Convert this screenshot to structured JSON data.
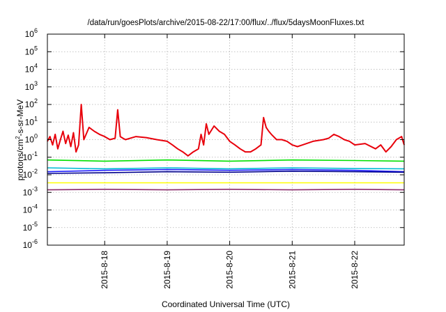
{
  "chart_data": {
    "type": "line",
    "title": "/data/run/goesPlots/archive/2015-08-22/17:00/flux/../flux/5daysMoonFluxes.txt",
    "xlabel": "Coordinated Universal Time (UTC)",
    "ylabel": {
      "base": "protons/cm",
      "sup": "2",
      "rest": "-s-sr-MeV"
    },
    "y_scale": "log",
    "ylim": [
      1e-06,
      1000000.0
    ],
    "xlim": [
      "2015-08-17T02:00",
      "2015-08-22T19:00"
    ],
    "grid": true,
    "legend": "none",
    "y_ticks": [
      {
        "value": 1e-06,
        "base": "10",
        "exp": "-6"
      },
      {
        "value": 1e-05,
        "base": "10",
        "exp": "-5"
      },
      {
        "value": 0.0001,
        "base": "10",
        "exp": "-4"
      },
      {
        "value": 0.001,
        "base": "10",
        "exp": "-3"
      },
      {
        "value": 0.01,
        "base": "10",
        "exp": "-2"
      },
      {
        "value": 0.1,
        "base": "10",
        "exp": "-1"
      },
      {
        "value": 1,
        "base": "10",
        "exp": "0"
      },
      {
        "value": 10.0,
        "base": "10",
        "exp": "1"
      },
      {
        "value": 100.0,
        "base": "10",
        "exp": "2"
      },
      {
        "value": 1000.0,
        "base": "10",
        "exp": "3"
      },
      {
        "value": 10000.0,
        "base": "10",
        "exp": "4"
      },
      {
        "value": 100000.0,
        "base": "10",
        "exp": "5"
      },
      {
        "value": 1000000.0,
        "base": "10",
        "exp": "6"
      }
    ],
    "x_ticks": [
      {
        "value": "2015-08-18T00:00",
        "label": "2015-8-18"
      },
      {
        "value": "2015-08-19T00:00",
        "label": "2015-8-19"
      },
      {
        "value": "2015-08-20T00:00",
        "label": "2015-8-20"
      },
      {
        "value": "2015-08-21T00:00",
        "label": "2015-8-21"
      },
      {
        "value": "2015-08-22T00:00",
        "label": "2015-8-22"
      }
    ],
    "series": [
      {
        "color": "#e8000b",
        "x": [
          "2015-08-17T02:00",
          "2015-08-17T03:00",
          "2015-08-17T04:00",
          "2015-08-17T05:00",
          "2015-08-17T06:00",
          "2015-08-17T07:00",
          "2015-08-17T08:00",
          "2015-08-17T09:00",
          "2015-08-17T10:00",
          "2015-08-17T11:00",
          "2015-08-17T12:00",
          "2015-08-17T13:00",
          "2015-08-17T14:00",
          "2015-08-17T15:00",
          "2015-08-17T16:00",
          "2015-08-17T18:00",
          "2015-08-17T20:00",
          "2015-08-17T22:00",
          "2015-08-18T00:00",
          "2015-08-18T02:00",
          "2015-08-18T04:00",
          "2015-08-18T05:00",
          "2015-08-18T06:00",
          "2015-08-18T07:00",
          "2015-08-18T08:00",
          "2015-08-18T12:00",
          "2015-08-18T16:00",
          "2015-08-18T20:00",
          "2015-08-19T00:00",
          "2015-08-19T02:00",
          "2015-08-19T04:00",
          "2015-08-19T06:00",
          "2015-08-19T08:00",
          "2015-08-19T10:00",
          "2015-08-19T12:00",
          "2015-08-19T13:00",
          "2015-08-19T14:00",
          "2015-08-19T15:00",
          "2015-08-19T16:00",
          "2015-08-19T18:00",
          "2015-08-19T20:00",
          "2015-08-19T22:00",
          "2015-08-20T00:00",
          "2015-08-20T02:00",
          "2015-08-20T04:00",
          "2015-08-20T06:00",
          "2015-08-20T08:00",
          "2015-08-20T10:00",
          "2015-08-20T12:00",
          "2015-08-20T13:00",
          "2015-08-20T14:00",
          "2015-08-20T15:00",
          "2015-08-20T16:00",
          "2015-08-20T18:00",
          "2015-08-20T20:00",
          "2015-08-20T22:00",
          "2015-08-21T00:00",
          "2015-08-21T02:00",
          "2015-08-21T04:00",
          "2015-08-21T08:00",
          "2015-08-21T12:00",
          "2015-08-21T14:00",
          "2015-08-21T16:00",
          "2015-08-21T18:00",
          "2015-08-21T20:00",
          "2015-08-21T22:00",
          "2015-08-22T00:00",
          "2015-08-22T04:00",
          "2015-08-22T08:00",
          "2015-08-22T10:00",
          "2015-08-22T12:00",
          "2015-08-22T14:00",
          "2015-08-22T16:00",
          "2015-08-22T18:00",
          "2015-08-22T19:00"
        ],
        "values": [
          0.8,
          1.5,
          0.5,
          2.0,
          0.3,
          1.0,
          3.0,
          0.6,
          1.8,
          0.4,
          2.5,
          0.2,
          0.5,
          100,
          1.0,
          5.0,
          3.0,
          2.0,
          1.5,
          1.0,
          1.2,
          50,
          1.5,
          1.2,
          1.0,
          1.5,
          1.3,
          1.0,
          0.8,
          0.5,
          0.3,
          0.2,
          0.12,
          0.2,
          0.3,
          2.0,
          0.5,
          8.0,
          2.0,
          6.0,
          3.0,
          2.0,
          0.8,
          0.5,
          0.3,
          0.2,
          0.2,
          0.3,
          0.5,
          18.0,
          5.0,
          3.0,
          2.0,
          1.0,
          1.0,
          0.8,
          0.5,
          0.4,
          0.5,
          0.8,
          1.0,
          1.2,
          2.0,
          1.5,
          1.0,
          0.8,
          0.5,
          0.6,
          0.3,
          0.5,
          0.2,
          0.4,
          1.0,
          1.5,
          0.5
        ]
      },
      {
        "color": "#00e000",
        "x": [
          "2015-08-17T02:00",
          "2015-08-18T00:00",
          "2015-08-19T00:00",
          "2015-08-20T00:00",
          "2015-08-21T00:00",
          "2015-08-22T00:00",
          "2015-08-22T19:00"
        ],
        "values": [
          0.07,
          0.06,
          0.07,
          0.06,
          0.07,
          0.065,
          0.06
        ]
      },
      {
        "color": "#00bcd4",
        "x": [
          "2015-08-17T02:00",
          "2015-08-18T00:00",
          "2015-08-19T00:00",
          "2015-08-20T00:00",
          "2015-08-21T00:00",
          "2015-08-22T00:00",
          "2015-08-22T19:00"
        ],
        "values": [
          0.025,
          0.022,
          0.025,
          0.022,
          0.025,
          0.023,
          0.022
        ]
      },
      {
        "color": "#1a1aff",
        "x": [
          "2015-08-17T02:00",
          "2015-08-18T00:00",
          "2015-08-19T00:00",
          "2015-08-20T00:00",
          "2015-08-21T00:00",
          "2015-08-22T00:00",
          "2015-08-22T19:00"
        ],
        "values": [
          0.015,
          0.018,
          0.02,
          0.018,
          0.02,
          0.018,
          0.015
        ]
      },
      {
        "color": "#00008b",
        "x": [
          "2015-08-17T02:00",
          "2015-08-18T00:00",
          "2015-08-19T00:00",
          "2015-08-20T00:00",
          "2015-08-21T00:00",
          "2015-08-22T00:00",
          "2015-08-22T19:00"
        ],
        "values": [
          0.012,
          0.013,
          0.015,
          0.014,
          0.016,
          0.015,
          0.014
        ]
      },
      {
        "color": "#ffff00",
        "x": [
          "2015-08-17T02:00",
          "2015-08-18T00:00",
          "2015-08-19T00:00",
          "2015-08-20T00:00",
          "2015-08-21T00:00",
          "2015-08-22T00:00",
          "2015-08-22T19:00"
        ],
        "values": [
          0.0035,
          0.0035,
          0.0035,
          0.0035,
          0.0035,
          0.0035,
          0.0035
        ]
      },
      {
        "color": "#8b2a6b",
        "x": [
          "2015-08-17T02:00",
          "2015-08-18T00:00",
          "2015-08-19T00:00",
          "2015-08-20T00:00",
          "2015-08-21T00:00",
          "2015-08-22T00:00",
          "2015-08-22T19:00"
        ],
        "values": [
          0.0014,
          0.0015,
          0.0014,
          0.0015,
          0.0014,
          0.0015,
          0.0014
        ]
      }
    ]
  }
}
